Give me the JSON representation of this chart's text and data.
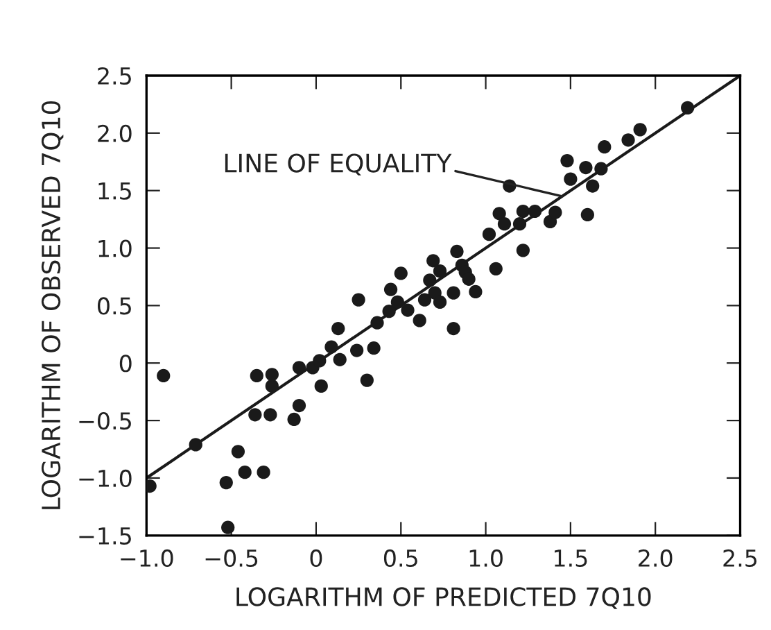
{
  "chart_data": {
    "type": "scatter",
    "xlabel": "LOGARITHM OF PREDICTED 7Q10",
    "ylabel": "LOGARITHM OF OBSERVED 7Q10",
    "xlim": [
      -1.0,
      2.5
    ],
    "ylim": [
      -1.5,
      2.5
    ],
    "xticks": [
      {
        "value": -1.0,
        "label": "−1.0"
      },
      {
        "value": -0.5,
        "label": "−0.5"
      },
      {
        "value": 0,
        "label": "0"
      },
      {
        "value": 0.5,
        "label": "0.5"
      },
      {
        "value": 1.0,
        "label": "1.0"
      },
      {
        "value": 1.5,
        "label": "1.5"
      },
      {
        "value": 2.0,
        "label": "2.0"
      },
      {
        "value": 2.5,
        "label": "2.5"
      }
    ],
    "yticks": [
      {
        "value": -1.5,
        "label": "−1.5"
      },
      {
        "value": -1.0,
        "label": "−1.0"
      },
      {
        "value": -0.5,
        "label": "−0.5"
      },
      {
        "value": 0,
        "label": "0"
      },
      {
        "value": 0.5,
        "label": "0.5"
      },
      {
        "value": 1.0,
        "label": "1.0"
      },
      {
        "value": 1.5,
        "label": "1.5"
      },
      {
        "value": 2.0,
        "label": "2.0"
      },
      {
        "value": 2.5,
        "label": "2.5"
      }
    ],
    "grid": false,
    "annotations": [
      {
        "text": "LINE OF EQUALITY",
        "x": 1.45,
        "y": 1.45
      }
    ],
    "series": [
      {
        "marker": "circle",
        "color": "#1a1a1a",
        "x": [
          -0.98,
          -0.9,
          -0.71,
          -0.53,
          -0.52,
          -0.46,
          -0.42,
          -0.36,
          -0.35,
          -0.31,
          -0.27,
          -0.26,
          -0.26,
          -0.13,
          -0.1,
          -0.1,
          -0.02,
          0.02,
          0.03,
          0.09,
          0.13,
          0.14,
          0.24,
          0.25,
          0.3,
          0.34,
          0.36,
          0.43,
          0.44,
          0.48,
          0.5,
          0.54,
          0.61,
          0.64,
          0.67,
          0.69,
          0.7,
          0.73,
          0.73,
          0.81,
          0.81,
          0.83,
          0.86,
          0.88,
          0.9,
          0.94,
          1.02,
          1.06,
          1.08,
          1.11,
          1.14,
          1.2,
          1.22,
          1.22,
          1.29,
          1.38,
          1.41,
          1.48,
          1.5,
          1.59,
          1.6,
          1.63,
          1.68,
          1.7,
          1.84,
          1.91,
          2.19
        ],
        "values": [
          -1.07,
          -0.11,
          -0.71,
          -1.04,
          -1.43,
          -0.77,
          -0.95,
          -0.45,
          -0.11,
          -0.95,
          -0.45,
          -0.2,
          -0.1,
          -0.49,
          -0.37,
          -0.04,
          -0.04,
          0.02,
          -0.2,
          0.14,
          0.3,
          0.03,
          0.11,
          0.55,
          -0.15,
          0.13,
          0.35,
          0.45,
          0.64,
          0.53,
          0.78,
          0.46,
          0.37,
          0.55,
          0.72,
          0.89,
          0.61,
          0.53,
          0.8,
          0.3,
          0.61,
          0.97,
          0.85,
          0.79,
          0.73,
          0.62,
          1.12,
          0.82,
          1.3,
          1.21,
          1.54,
          1.21,
          0.98,
          1.32,
          1.32,
          1.23,
          1.31,
          1.76,
          1.6,
          1.7,
          1.29,
          1.54,
          1.69,
          1.88,
          1.94,
          2.03,
          2.22
        ]
      },
      {
        "type": "line",
        "marker": "none",
        "color": "#1a1a1a",
        "line_style": "solid",
        "x": [
          -1.0,
          2.5
        ],
        "values": [
          -1.0,
          2.5
        ]
      }
    ]
  }
}
